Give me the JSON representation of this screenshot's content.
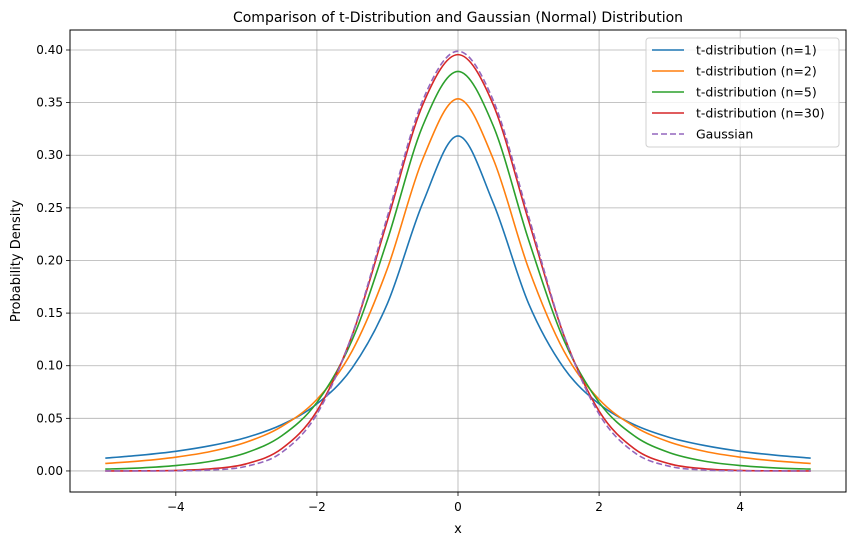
{
  "chart_data": {
    "type": "line",
    "title": "Comparison of t-Distribution and Gaussian (Normal) Distribution",
    "xlabel": "x",
    "ylabel": "Probability Density",
    "xlim": [
      -5.5,
      5.5
    ],
    "ylim": [
      -0.02,
      0.419
    ],
    "xticks": [
      -4,
      -2,
      0,
      2,
      4
    ],
    "xtick_labels": [
      "−4",
      "−2",
      "0",
      "2",
      "4"
    ],
    "yticks": [
      0,
      0.05,
      0.1,
      0.15,
      0.2,
      0.25,
      0.3,
      0.35,
      0.4
    ],
    "ytick_labels": [
      "0.00",
      "0.05",
      "0.10",
      "0.15",
      "0.20",
      "0.25",
      "0.30",
      "0.35",
      "0.40"
    ],
    "grid": true,
    "legend_position": "top-right",
    "x": [
      -5,
      -4.5,
      -4,
      -3.5,
      -3,
      -2.5,
      -2,
      -1.5,
      -1,
      -0.5,
      0,
      0.5,
      1,
      1.5,
      2,
      2.5,
      3,
      3.5,
      4,
      4.5,
      5
    ],
    "series": [
      {
        "name": "t-distribution (n=1)",
        "color": "#1f77b4",
        "dash": false,
        "values": [
          0.0122,
          0.015,
          0.0187,
          0.0241,
          0.0318,
          0.0439,
          0.0637,
          0.0979,
          0.1592,
          0.2546,
          0.3183,
          0.2546,
          0.1592,
          0.0979,
          0.0637,
          0.0439,
          0.0318,
          0.0241,
          0.0187,
          0.015,
          0.0122
        ]
      },
      {
        "name": "t-distribution (n=2)",
        "color": "#ff7f0e",
        "dash": false,
        "values": [
          0.0071,
          0.0095,
          0.0131,
          0.0186,
          0.0274,
          0.0422,
          0.068,
          0.1141,
          0.1925,
          0.2963,
          0.3536,
          0.2963,
          0.1925,
          0.1141,
          0.068,
          0.0422,
          0.0274,
          0.0186,
          0.0131,
          0.0095,
          0.0071
        ]
      },
      {
        "name": "t-distribution (n=5)",
        "color": "#2ca02c",
        "dash": false,
        "values": [
          0.0018,
          0.0029,
          0.0051,
          0.0092,
          0.0173,
          0.0333,
          0.0651,
          0.1245,
          0.2197,
          0.3279,
          0.3796,
          0.3279,
          0.2197,
          0.1245,
          0.0651,
          0.0333,
          0.0173,
          0.0092,
          0.0051,
          0.0029,
          0.0018
        ]
      },
      {
        "name": "t-distribution (n=30)",
        "color": "#d62728",
        "dash": false,
        "values": [
          0.0,
          0.0001,
          0.0005,
          0.002,
          0.0068,
          0.0211,
          0.0569,
          0.129,
          0.238,
          0.3479,
          0.3956,
          0.3479,
          0.238,
          0.129,
          0.0569,
          0.0211,
          0.0068,
          0.002,
          0.0005,
          0.0001,
          0.0
        ]
      },
      {
        "name": "Gaussian",
        "color": "#9467bd",
        "dash": true,
        "values": [
          0.0,
          0.0,
          0.0001,
          0.0009,
          0.0044,
          0.0175,
          0.054,
          0.1295,
          0.242,
          0.3521,
          0.3989,
          0.3521,
          0.242,
          0.1295,
          0.054,
          0.0175,
          0.0044,
          0.0009,
          0.0001,
          0.0,
          0.0
        ]
      }
    ]
  }
}
